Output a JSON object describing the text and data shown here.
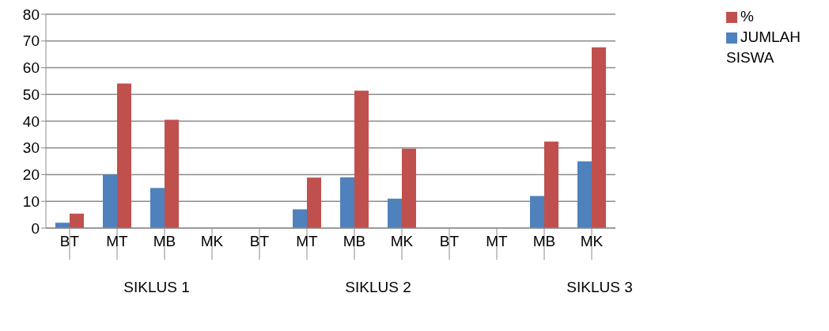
{
  "chart_data": {
    "type": "bar",
    "categories": [
      "BT",
      "MT",
      "MB",
      "MK",
      "BT",
      "MT",
      "MB",
      "MK",
      "BT",
      "MT",
      "MB",
      "MK"
    ],
    "series": [
      {
        "name": "JUMLAH SISWA",
        "color": "#4f81bd",
        "values": [
          2,
          20,
          15,
          0,
          0,
          7,
          19,
          11,
          0,
          0,
          12,
          25
        ]
      },
      {
        "name": "%",
        "color": "#c0504d",
        "values": [
          5.4,
          54.1,
          40.5,
          0,
          0,
          18.9,
          51.4,
          29.7,
          0,
          0,
          32.4,
          67.6
        ]
      }
    ],
    "ylim": [
      0,
      80
    ],
    "yticks": [
      0,
      10,
      20,
      30,
      40,
      50,
      60,
      70,
      80
    ],
    "grid": "y",
    "legend": "top right",
    "annotations": [
      "SIKLUS 1",
      "SIKLUS 2",
      "SIKLUS 3"
    ]
  }
}
